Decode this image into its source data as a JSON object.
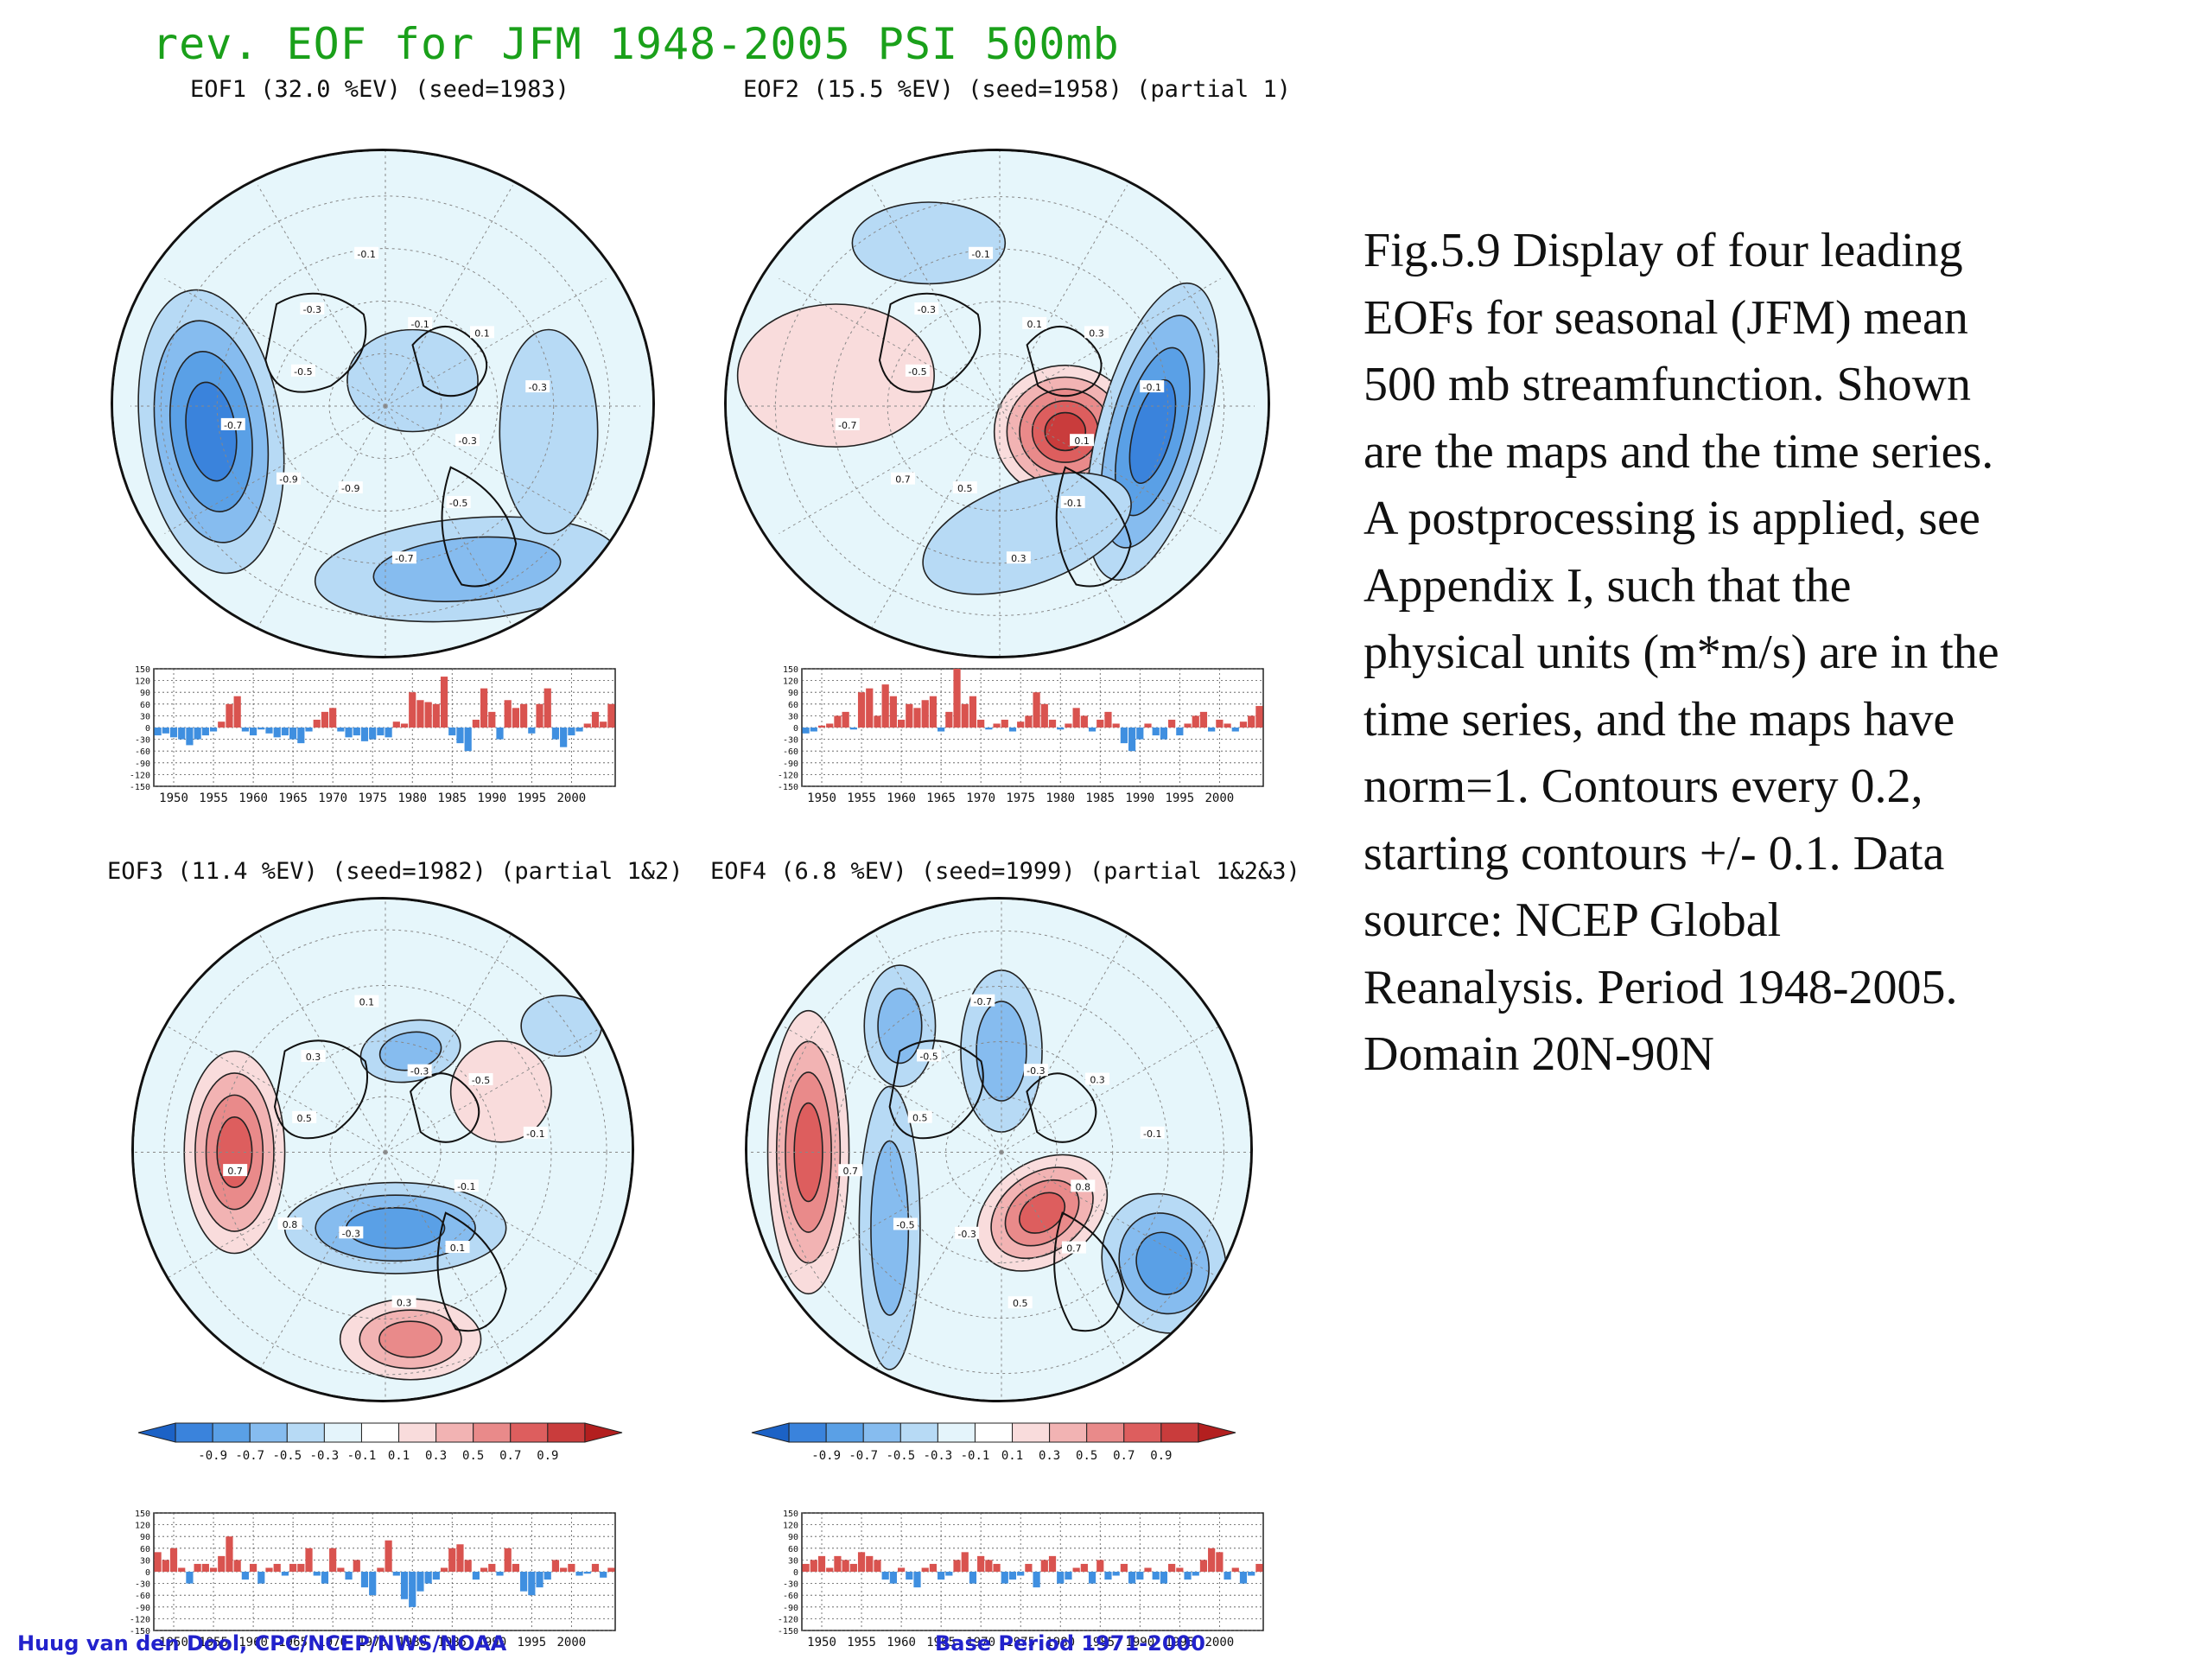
{
  "title": "rev. EOF for JFM 1948-2005 PSI 500mb",
  "caption_lines": [
    "Fig.5.9 Display of  four leading",
    "EOFs for seasonal (JFM) mean",
    "500 mb streamfunction. Shown",
    "are the maps and the time series.",
    "A postprocessing is applied, see",
    "Appendix I, such that the",
    "physical units (m*m/s) are in the",
    "time series, and the maps have",
    "norm=1. Contours every 0.2,",
    "starting contours +/- 0.1. Data",
    "source: NCEP Global",
    "Reanalysis. Period 1948-2005.",
    "Domain 20N-90N"
  ],
  "footer": {
    "left": "Huug van den Dool, CPC/NCEP/NWS/NOAA",
    "right": "Base Period 1971-2000"
  },
  "colors": {
    "title": "#1aa01a",
    "positive": "#d9534f",
    "negative": "#3f8fe0",
    "ocean": "#e6f6fb",
    "footer": "#2222cc"
  },
  "colorbar": {
    "type": "legend",
    "ticks": [
      "-0.9",
      "-0.7",
      "-0.5",
      "-0.3",
      "-0.1",
      "0.1",
      "0.3",
      "0.5",
      "0.7",
      "0.9"
    ],
    "colors": [
      "#1c62c6",
      "#3a83dc",
      "#5aa0e6",
      "#86bcef",
      "#b7daf5",
      "#e4f4fb",
      "#ffffff",
      "#f9dcdc",
      "#f2b3b3",
      "#e98a8a",
      "#dd5e5e",
      "#c93c3c",
      "#b31f1f"
    ]
  },
  "chart_data": [
    {
      "type": "bar",
      "id": "eof1",
      "title": "EOF1 (32.0 %EV)    (seed=1983)",
      "ylim": [
        -150,
        150
      ],
      "yticks": [
        "150",
        "120",
        "90",
        "60",
        "30",
        "0",
        "-30",
        "-60",
        "-90",
        "-120",
        "-150"
      ],
      "xticks": [
        "1950",
        "1955",
        "1960",
        "1965",
        "1970",
        "1975",
        "1980",
        "1985",
        "1990",
        "1995",
        "2000"
      ],
      "x": [
        1948,
        1949,
        1950,
        1951,
        1952,
        1953,
        1954,
        1955,
        1956,
        1957,
        1958,
        1959,
        1960,
        1961,
        1962,
        1963,
        1964,
        1965,
        1966,
        1967,
        1968,
        1969,
        1970,
        1971,
        1972,
        1973,
        1974,
        1975,
        1976,
        1977,
        1978,
        1979,
        1980,
        1981,
        1982,
        1983,
        1984,
        1985,
        1986,
        1987,
        1988,
        1989,
        1990,
        1991,
        1992,
        1993,
        1994,
        1995,
        1996,
        1997,
        1998,
        1999,
        2000,
        2001,
        2002,
        2003,
        2004,
        2005
      ],
      "values": [
        -20,
        -15,
        -25,
        -30,
        -45,
        -30,
        -20,
        -10,
        15,
        60,
        80,
        -10,
        -20,
        -5,
        -15,
        -25,
        -20,
        -30,
        -40,
        -10,
        20,
        40,
        50,
        -10,
        -25,
        -20,
        -35,
        -30,
        -20,
        -25,
        15,
        10,
        90,
        70,
        65,
        60,
        130,
        -20,
        -40,
        -60,
        20,
        100,
        40,
        -30,
        70,
        50,
        60,
        -15,
        60,
        100,
        -30,
        -50,
        -20,
        -10,
        10,
        40,
        15,
        60
      ]
    },
    {
      "type": "bar",
      "id": "eof2",
      "title": "EOF2 (15.5 %EV)   (seed=1958) (partial 1)",
      "ylim": [
        -150,
        150
      ],
      "yticks": [
        "150",
        "120",
        "90",
        "60",
        "30",
        "0",
        "-30",
        "-60",
        "-90",
        "-120",
        "-150"
      ],
      "xticks": [
        "1950",
        "1955",
        "1960",
        "1965",
        "1970",
        "1975",
        "1980",
        "1985",
        "1990",
        "1995",
        "2000"
      ],
      "x": [
        1948,
        1949,
        1950,
        1951,
        1952,
        1953,
        1954,
        1955,
        1956,
        1957,
        1958,
        1959,
        1960,
        1961,
        1962,
        1963,
        1964,
        1965,
        1966,
        1967,
        1968,
        1969,
        1970,
        1971,
        1972,
        1973,
        1974,
        1975,
        1976,
        1977,
        1978,
        1979,
        1980,
        1981,
        1982,
        1983,
        1984,
        1985,
        1986,
        1987,
        1988,
        1989,
        1990,
        1991,
        1992,
        1993,
        1994,
        1995,
        1996,
        1997,
        1998,
        1999,
        2000,
        2001,
        2002,
        2003,
        2004,
        2005
      ],
      "values": [
        -15,
        -10,
        5,
        10,
        30,
        40,
        -5,
        90,
        100,
        30,
        110,
        80,
        20,
        60,
        50,
        70,
        80,
        -10,
        40,
        150,
        60,
        80,
        20,
        -5,
        10,
        20,
        -10,
        15,
        30,
        90,
        60,
        20,
        -5,
        10,
        50,
        30,
        -10,
        20,
        40,
        10,
        -40,
        -60,
        -30,
        10,
        -20,
        -30,
        20,
        -20,
        10,
        30,
        40,
        -10,
        20,
        10,
        -10,
        15,
        30,
        55
      ]
    },
    {
      "type": "bar",
      "id": "eof3",
      "title": "EOF3 (11.4 %EV)    (seed=1982) (partial 1&2)",
      "ylim": [
        -150,
        150
      ],
      "yticks": [
        "150",
        "120",
        "90",
        "60",
        "30",
        "0",
        "-30",
        "-60",
        "-90",
        "-120",
        "-150"
      ],
      "xticks": [
        "1950",
        "1955",
        "1960",
        "1965",
        "1970",
        "1975",
        "1980",
        "1985",
        "1990",
        "1995",
        "2000"
      ],
      "x": [
        1948,
        1949,
        1950,
        1951,
        1952,
        1953,
        1954,
        1955,
        1956,
        1957,
        1958,
        1959,
        1960,
        1961,
        1962,
        1963,
        1964,
        1965,
        1966,
        1967,
        1968,
        1969,
        1970,
        1971,
        1972,
        1973,
        1974,
        1975,
        1976,
        1977,
        1978,
        1979,
        1980,
        1981,
        1982,
        1983,
        1984,
        1985,
        1986,
        1987,
        1988,
        1989,
        1990,
        1991,
        1992,
        1993,
        1994,
        1995,
        1996,
        1997,
        1998,
        1999,
        2000,
        2001,
        2002,
        2003,
        2004,
        2005
      ],
      "values": [
        50,
        30,
        60,
        10,
        -30,
        20,
        20,
        10,
        40,
        90,
        30,
        -20,
        20,
        -30,
        10,
        20,
        -10,
        20,
        20,
        60,
        -10,
        -30,
        60,
        10,
        -20,
        30,
        -40,
        -60,
        10,
        80,
        -10,
        -70,
        -90,
        -50,
        -30,
        -20,
        10,
        60,
        70,
        30,
        -20,
        10,
        20,
        -10,
        60,
        20,
        -50,
        -60,
        -40,
        -20,
        30,
        10,
        20,
        -10,
        -5,
        20,
        -15,
        10
      ]
    },
    {
      "type": "bar",
      "id": "eof4",
      "title": "EOF4 (6.8 %EV)    (seed=1999) (partial 1&2&3)",
      "ylim": [
        -150,
        150
      ],
      "yticks": [
        "150",
        "120",
        "90",
        "60",
        "30",
        "0",
        "-30",
        "-60",
        "-90",
        "-120",
        "-150"
      ],
      "xticks": [
        "1950",
        "1955",
        "1960",
        "1965",
        "1970",
        "1975",
        "1980",
        "1985",
        "1990",
        "1995",
        "2000"
      ],
      "x": [
        1948,
        1949,
        1950,
        1951,
        1952,
        1953,
        1954,
        1955,
        1956,
        1957,
        1958,
        1959,
        1960,
        1961,
        1962,
        1963,
        1964,
        1965,
        1966,
        1967,
        1968,
        1969,
        1970,
        1971,
        1972,
        1973,
        1974,
        1975,
        1976,
        1977,
        1978,
        1979,
        1980,
        1981,
        1982,
        1983,
        1984,
        1985,
        1986,
        1987,
        1988,
        1989,
        1990,
        1991,
        1992,
        1993,
        1994,
        1995,
        1996,
        1997,
        1998,
        1999,
        2000,
        2001,
        2002,
        2003,
        2004,
        2005
      ],
      "values": [
        20,
        30,
        40,
        10,
        40,
        30,
        20,
        50,
        40,
        30,
        -20,
        -30,
        10,
        -20,
        -40,
        10,
        20,
        -20,
        -10,
        30,
        50,
        -30,
        40,
        30,
        20,
        -30,
        -20,
        -10,
        20,
        -40,
        30,
        40,
        -30,
        -20,
        10,
        20,
        -30,
        30,
        -20,
        -10,
        20,
        -30,
        -20,
        10,
        -20,
        -30,
        20,
        10,
        -20,
        -10,
        30,
        60,
        50,
        -20,
        10,
        -30,
        -10,
        20
      ]
    }
  ],
  "maps": [
    {
      "id": "eof1",
      "labels": [
        "-0.3",
        "-0.5",
        "-0.7",
        "-0.9",
        "-0.9",
        "-0.7",
        "-0.5",
        "-0.3",
        "-0.1",
        "-0.1",
        "0.1",
        "-0.3"
      ]
    },
    {
      "id": "eof2",
      "labels": [
        "0.1",
        "-0.1",
        "0.3",
        "0.5",
        "0.7",
        "-0.7",
        "-0.5",
        "-0.3",
        "-0.1",
        "0.1",
        "0.3",
        "-0.1"
      ]
    },
    {
      "id": "eof3",
      "labels": [
        "-0.1",
        "0.1",
        "0.3",
        "-0.3",
        "0.8",
        "0.7",
        "0.5",
        "0.3",
        "0.1",
        "-0.3",
        "-0.5",
        "-0.1"
      ]
    },
    {
      "id": "eof4",
      "labels": [
        "0.8",
        "0.7",
        "0.5",
        "-0.3",
        "-0.5",
        "0.7",
        "0.5",
        "-0.5",
        "-0.7",
        "-0.3",
        "0.3",
        "-0.1"
      ]
    }
  ]
}
